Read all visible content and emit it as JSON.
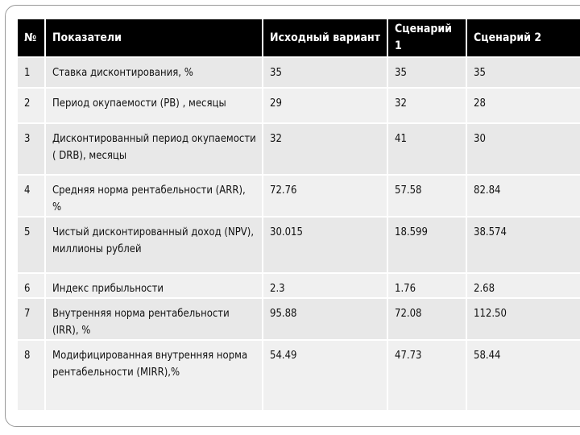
{
  "table": {
    "header": [
      "№",
      "Показатели",
      "Исходный вариант",
      "Сценарий 1",
      "Сценарий 2"
    ],
    "rows": [
      [
        "1",
        "Ставка дисконтирования, %",
        "35",
        "35",
        "35"
      ],
      [
        "2",
        "Период окупаемости (PB) , месяцы",
        "29",
        "32",
        "28"
      ],
      [
        "3",
        "Дисконтированный период окупаемости ( DRB), месяцы",
        "32",
        "41",
        "30"
      ],
      [
        "4",
        "Средняя норма рентабельности (ARR), %",
        "72.76",
        "57.58",
        "82.84"
      ],
      [
        "5",
        "Чистый дисконтированный доход (NPV), миллионы рублей",
        "30.015",
        "18.599",
        "38.574"
      ],
      [
        "6",
        "Индекс прибыльности",
        "2.3",
        "1.76",
        "2.68"
      ],
      [
        "7",
        "Внутренняя норма рентабельности (IRR), %",
        "95.88",
        "72.08",
        "112.50"
      ],
      [
        "8",
        "Модифицированная внутренняя норма рентабельности (MIRR),%",
        "54.49",
        "47.73",
        "58.44"
      ]
    ]
  }
}
